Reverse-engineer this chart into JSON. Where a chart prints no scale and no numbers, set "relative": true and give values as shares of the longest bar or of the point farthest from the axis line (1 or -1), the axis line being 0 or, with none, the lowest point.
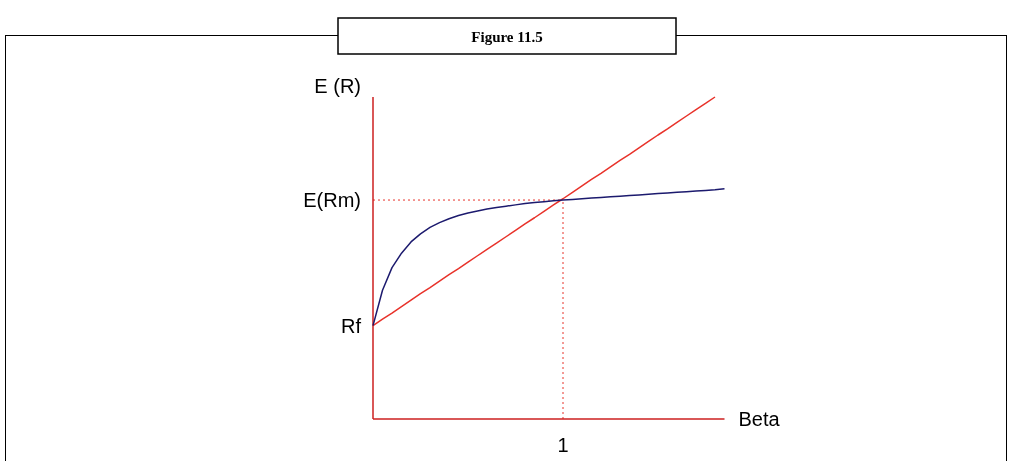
{
  "chart_data": {
    "type": "line",
    "title": "Figure 11.5",
    "xlabel": "Beta",
    "ylabel": "E (R)",
    "relative": true,
    "line_style": "solid",
    "categories": [
      null,
      null,
      null,
      null,
      null,
      null,
      null,
      null,
      null,
      null,
      null,
      null,
      null,
      null,
      null,
      null,
      null,
      null,
      null,
      null,
      null,
      null,
      null,
      null,
      null,
      null,
      null,
      null,
      null,
      null,
      null,
      null,
      null,
      null,
      null,
      null,
      null,
      null
    ],
    "series": [
      {
        "color": "#e8322a",
        "values": [
          0.29,
          0.31,
          0.329,
          0.349,
          0.369,
          0.389,
          0.408,
          0.428,
          0.448,
          0.467,
          0.487,
          0.507,
          0.527,
          0.546,
          0.566,
          0.586,
          0.606,
          0.625,
          0.645,
          0.665,
          0.684,
          0.704,
          0.724,
          0.744,
          0.763,
          0.783,
          0.803,
          0.822,
          0.842,
          0.862,
          0.882,
          0.901,
          0.921,
          0.941,
          0.961,
          0.98,
          1.0,
          null
        ]
      },
      {
        "color": "#1c1a6e",
        "values": [
          0.29,
          0.4,
          0.47,
          0.515,
          0.55,
          0.575,
          0.595,
          0.61,
          0.622,
          0.632,
          0.64,
          0.646,
          0.652,
          0.657,
          0.661,
          0.665,
          0.669,
          0.672,
          0.675,
          0.678,
          0.68,
          0.682,
          0.684,
          0.686,
          0.688,
          0.69,
          0.692,
          0.694,
          0.696,
          0.698,
          0.7,
          0.702,
          0.704,
          0.706,
          0.708,
          0.71,
          0.712,
          0.715
        ]
      }
    ],
    "ref_lines": [
      {
        "axis": "y",
        "value": 0.68,
        "label": "E(Rm)",
        "color": "#e8322a",
        "line_style": "dotted"
      }
    ],
    "annotations": [
      "Rf",
      "1"
    ]
  }
}
